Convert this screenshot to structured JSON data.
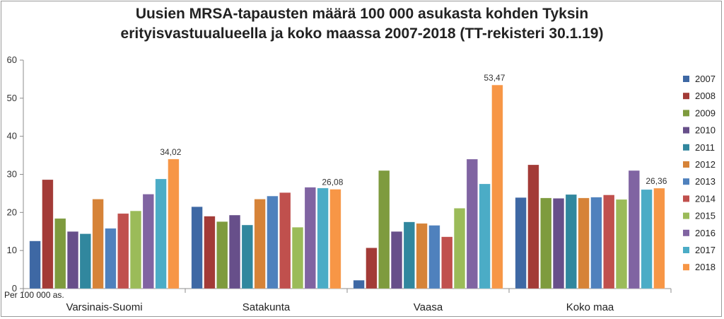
{
  "chart_data": {
    "type": "bar",
    "title_lines": [
      "Uusien MRSA-tapausten määrä 100 000 asukasta kohden Tyksin",
      "erityisvastuualueella ja koko maassa 2007-2018 (TT-rekisteri 30.1.19)"
    ],
    "categories": [
      "Varsinais-Suomi",
      "Satakunta",
      "Vaasa",
      "Koko maa"
    ],
    "ylim": [
      0,
      60
    ],
    "yticks": [
      0,
      10,
      20,
      30,
      40,
      50,
      60
    ],
    "y_unit_note": "Per  100 000 as.",
    "grid": false,
    "legend_position": "right",
    "series": [
      {
        "name": "2007",
        "color": "#3e68a4",
        "values": [
          12.5,
          21.5,
          2.2,
          23.9
        ]
      },
      {
        "name": "2008",
        "color": "#a33b37",
        "values": [
          28.6,
          19.0,
          10.7,
          32.5
        ]
      },
      {
        "name": "2009",
        "color": "#7e9b3e",
        "values": [
          18.4,
          17.6,
          31.0,
          23.8
        ]
      },
      {
        "name": "2010",
        "color": "#674f8a",
        "values": [
          15.0,
          19.3,
          15.0,
          23.7
        ]
      },
      {
        "name": "2011",
        "color": "#31879e",
        "values": [
          14.4,
          16.7,
          17.5,
          24.7
        ]
      },
      {
        "name": "2012",
        "color": "#d68338",
        "values": [
          23.5,
          23.5,
          17.1,
          23.8
        ]
      },
      {
        "name": "2013",
        "color": "#4f81bd",
        "values": [
          15.8,
          24.3,
          16.6,
          24.0
        ]
      },
      {
        "name": "2014",
        "color": "#c0504d",
        "values": [
          19.7,
          25.2,
          13.6,
          24.6
        ]
      },
      {
        "name": "2015",
        "color": "#9bbb59",
        "values": [
          20.4,
          16.1,
          21.1,
          23.4
        ]
      },
      {
        "name": "2016",
        "color": "#8064a2",
        "values": [
          24.8,
          26.6,
          34.0,
          31.0
        ]
      },
      {
        "name": "2017",
        "color": "#4bacc6",
        "values": [
          28.8,
          26.4,
          27.5,
          26.0
        ]
      },
      {
        "name": "2018",
        "color": "#f79646",
        "values": [
          34.02,
          26.08,
          53.47,
          26.36
        ]
      }
    ],
    "data_labels": [
      {
        "series": "2018",
        "category": "Varsinais-Suomi",
        "text": "34,02"
      },
      {
        "series": "2018",
        "category": "Satakunta",
        "text": "26,08"
      },
      {
        "series": "2018",
        "category": "Vaasa",
        "text": "53,47"
      },
      {
        "series": "2018",
        "category": "Koko maa",
        "text": "26,36"
      }
    ]
  }
}
